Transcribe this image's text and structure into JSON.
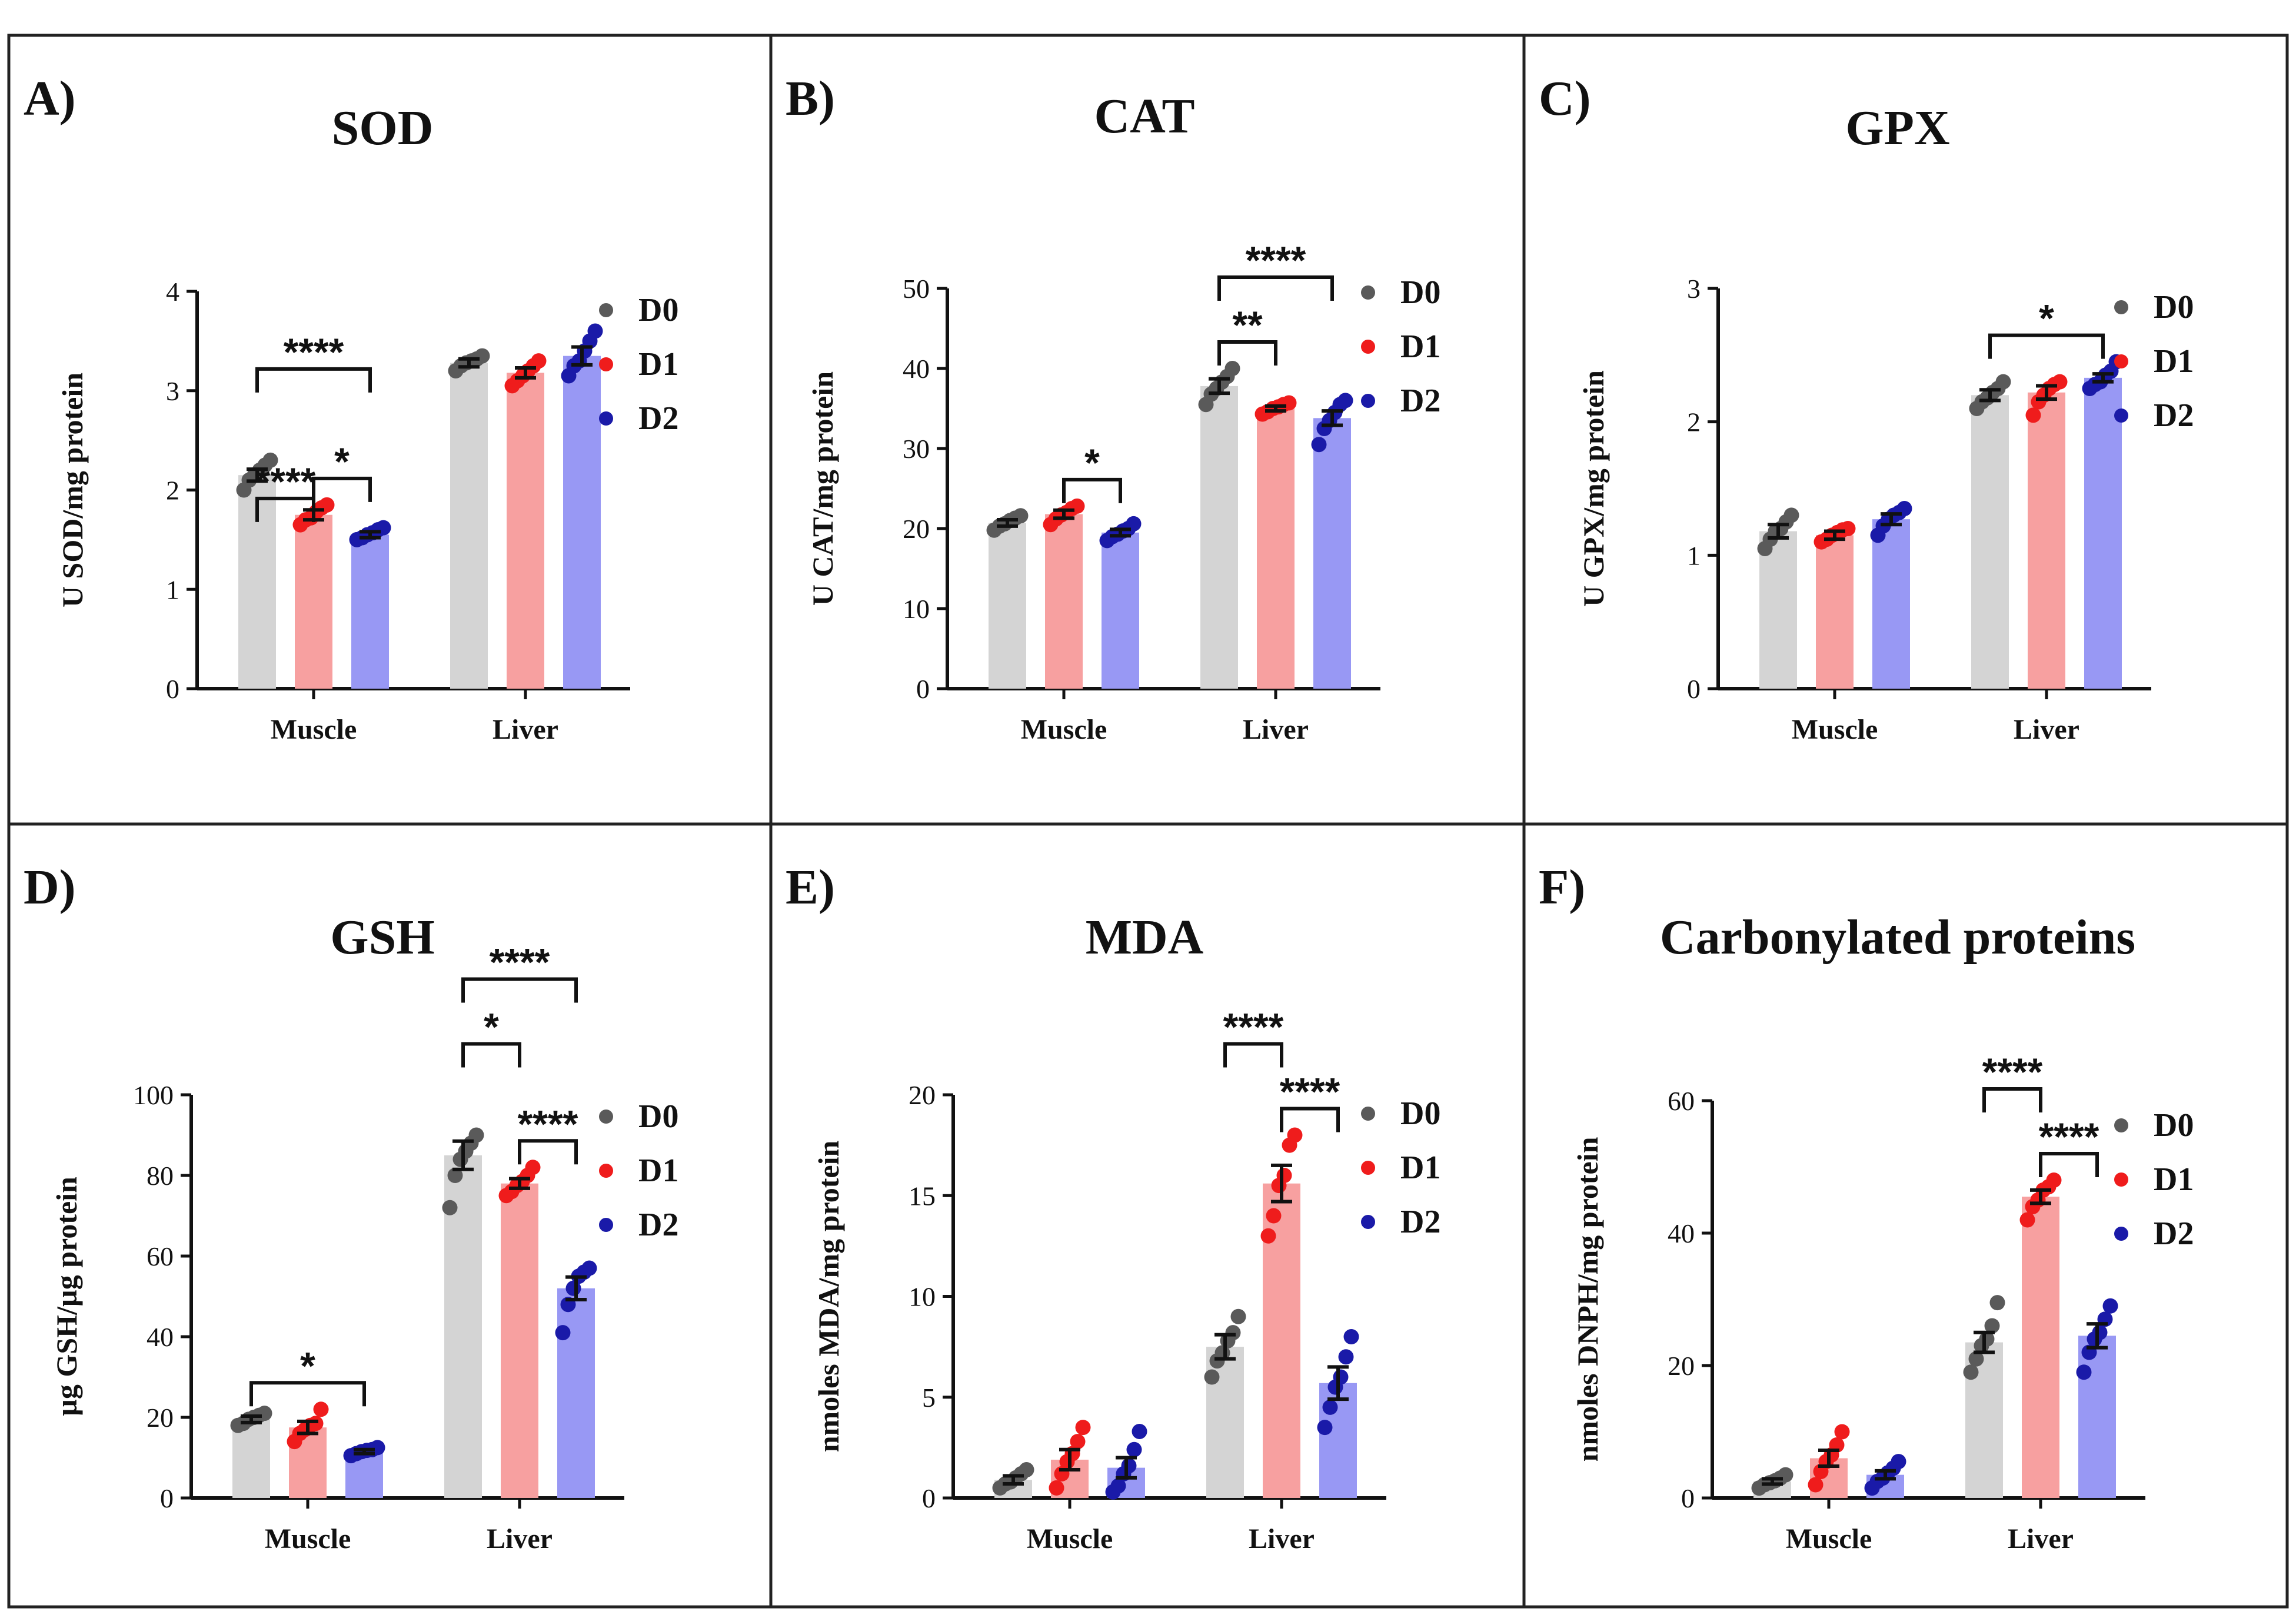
{
  "colors": {
    "D0_bar": "#d4d4d4",
    "D0_point": "#5a5a5a",
    "D1_bar": "#f7a0a0",
    "D1_point": "#ef1c1c",
    "D2_bar": "#9898f4",
    "D2_point": "#1a1aa8"
  },
  "chart_data": [
    {
      "panel_label": "A)",
      "title": "SOD",
      "type": "bar",
      "ylabel": "U SOD/mg protein",
      "ylim": [
        0,
        4
      ],
      "yticks": [
        0,
        1,
        2,
        3,
        4
      ],
      "categories": [
        "Muscle",
        "Liver"
      ],
      "series": [
        {
          "name": "D0",
          "values": [
            2.15,
            3.28
          ],
          "sem": [
            0.06,
            0.04
          ],
          "points": [
            [
              2.0,
              2.1,
              2.15,
              2.2,
              2.25,
              2.3
            ],
            [
              3.2,
              3.25,
              3.28,
              3.3,
              3.32,
              3.35
            ]
          ]
        },
        {
          "name": "D1",
          "values": [
            1.75,
            3.18
          ],
          "sem": [
            0.05,
            0.05
          ],
          "points": [
            [
              1.65,
              1.7,
              1.72,
              1.78,
              1.82,
              1.85
            ],
            [
              3.05,
              3.1,
              3.15,
              3.2,
              3.25,
              3.3
            ]
          ]
        },
        {
          "name": "D2",
          "values": [
            1.55,
            3.35
          ],
          "sem": [
            0.03,
            0.09
          ],
          "points": [
            [
              1.5,
              1.52,
              1.55,
              1.57,
              1.6,
              1.62
            ],
            [
              3.15,
              3.25,
              3.3,
              3.4,
              3.5,
              3.6
            ]
          ]
        }
      ],
      "significance": [
        {
          "group": 0,
          "from": 0,
          "to": 2,
          "level": 1,
          "label": "****"
        },
        {
          "group": 0,
          "from": 1,
          "to": 2,
          "level": 0,
          "label": "*"
        },
        {
          "group": 0,
          "from": 0,
          "to": 1,
          "level": -1,
          "label": "****"
        }
      ]
    },
    {
      "panel_label": "B)",
      "title": "CAT",
      "type": "bar",
      "ylabel": "U CAT/mg protein",
      "ylim": [
        0,
        50
      ],
      "yticks": [
        0,
        10,
        20,
        30,
        40,
        50
      ],
      "categories": [
        "Muscle",
        "Liver"
      ],
      "series": [
        {
          "name": "D0",
          "values": [
            20.7,
            37.8
          ],
          "sem": [
            0.4,
            0.9
          ],
          "points": [
            [
              19.8,
              20.3,
              20.6,
              21.0,
              21.3,
              21.6
            ],
            [
              35.5,
              36.8,
              37.5,
              38.3,
              39.0,
              40.0
            ]
          ]
        },
        {
          "name": "D1",
          "values": [
            21.8,
            35.0
          ],
          "sem": [
            0.5,
            0.3
          ],
          "points": [
            [
              20.5,
              21.2,
              21.7,
              22.0,
              22.5,
              22.8
            ],
            [
              34.3,
              34.6,
              35.0,
              35.2,
              35.5,
              35.7
            ]
          ]
        },
        {
          "name": "D2",
          "values": [
            19.5,
            33.8
          ],
          "sem": [
            0.4,
            0.9
          ],
          "points": [
            [
              18.5,
              19.0,
              19.3,
              19.7,
              20.0,
              20.6
            ],
            [
              30.5,
              32.5,
              33.5,
              34.5,
              35.5,
              36.0
            ]
          ]
        }
      ],
      "significance": [
        {
          "group": 1,
          "from": 0,
          "to": 2,
          "level": 1,
          "label": "****"
        },
        {
          "group": 1,
          "from": 0,
          "to": 1,
          "level": 0,
          "label": "**"
        },
        {
          "group": 0,
          "from": 1,
          "to": 2,
          "level": 0,
          "label": "*"
        }
      ]
    },
    {
      "panel_label": "C)",
      "title": "GPX",
      "type": "bar",
      "ylabel": "U GPX/mg protein",
      "ylim": [
        0,
        3
      ],
      "yticks": [
        0,
        1,
        2,
        3
      ],
      "categories": [
        "Muscle",
        "Liver"
      ],
      "series": [
        {
          "name": "D0",
          "values": [
            1.18,
            2.2
          ],
          "sem": [
            0.05,
            0.04
          ],
          "points": [
            [
              1.05,
              1.12,
              1.18,
              1.2,
              1.25,
              1.3
            ],
            [
              2.1,
              2.15,
              2.18,
              2.22,
              2.25,
              2.3
            ]
          ]
        },
        {
          "name": "D1",
          "values": [
            1.15,
            2.22
          ],
          "sem": [
            0.03,
            0.05
          ],
          "points": [
            [
              1.1,
              1.12,
              1.15,
              1.17,
              1.19,
              1.2
            ],
            [
              2.05,
              2.15,
              2.2,
              2.25,
              2.28,
              2.3
            ]
          ]
        },
        {
          "name": "D2",
          "values": [
            1.27,
            2.33
          ],
          "sem": [
            0.04,
            0.03
          ],
          "points": [
            [
              1.15,
              1.22,
              1.27,
              1.3,
              1.32,
              1.35
            ],
            [
              2.25,
              2.28,
              2.3,
              2.35,
              2.38,
              2.45
            ]
          ]
        }
      ],
      "significance": [
        {
          "group": 1,
          "from": 0,
          "to": 2,
          "level": 0,
          "label": "*"
        }
      ]
    },
    {
      "panel_label": "D)",
      "title": "GSH",
      "type": "bar",
      "ylabel": "µg GSH/µg protein",
      "ylim": [
        0,
        100
      ],
      "yticks": [
        0,
        20,
        40,
        60,
        80,
        100
      ],
      "categories": [
        "Muscle",
        "Liver"
      ],
      "series": [
        {
          "name": "D0",
          "values": [
            19.5,
            85.0
          ],
          "sem": [
            0.8,
            3.5
          ],
          "points": [
            [
              18.0,
              18.5,
              19.5,
              20.0,
              20.5,
              21.0
            ],
            [
              72.0,
              80.0,
              84.0,
              86.0,
              88.0,
              90.0
            ]
          ]
        },
        {
          "name": "D1",
          "values": [
            17.5,
            78.0
          ],
          "sem": [
            1.5,
            1.2
          ],
          "points": [
            [
              14.0,
              16.0,
              17.0,
              18.0,
              18.5,
              22.0
            ],
            [
              75.0,
              76.0,
              77.5,
              78.5,
              80.0,
              82.0
            ]
          ]
        },
        {
          "name": "D2",
          "values": [
            11.5,
            52.0
          ],
          "sem": [
            0.5,
            2.8
          ],
          "points": [
            [
              10.5,
              11.0,
              11.5,
              11.8,
              12.0,
              12.5
            ],
            [
              41.0,
              48.0,
              52.0,
              55.0,
              56.0,
              57.0
            ]
          ]
        }
      ],
      "significance": [
        {
          "group": 1,
          "from": 0,
          "to": 2,
          "level": 2,
          "label": "****"
        },
        {
          "group": 1,
          "from": 0,
          "to": 1,
          "level": 1,
          "label": "*"
        },
        {
          "group": 1,
          "from": 1,
          "to": 2,
          "level": 0,
          "label": "****"
        },
        {
          "group": 0,
          "from": 0,
          "to": 2,
          "level": 0,
          "label": "*"
        }
      ]
    },
    {
      "panel_label": "E)",
      "title": "MDA",
      "type": "bar",
      "ylabel": "nmoles MDA/mg protein",
      "ylim": [
        0,
        20
      ],
      "yticks": [
        0,
        5,
        10,
        15,
        20
      ],
      "categories": [
        "Muscle",
        "Liver"
      ],
      "series": [
        {
          "name": "D0",
          "values": [
            0.9,
            7.5
          ],
          "sem": [
            0.2,
            0.6
          ],
          "points": [
            [
              0.5,
              0.7,
              0.8,
              1.0,
              1.2,
              1.4
            ],
            [
              6.0,
              6.8,
              7.2,
              7.8,
              8.2,
              9.0
            ]
          ]
        },
        {
          "name": "D1",
          "values": [
            1.9,
            15.6
          ],
          "sem": [
            0.5,
            0.9
          ],
          "points": [
            [
              0.5,
              1.2,
              1.8,
              2.2,
              2.8,
              3.5
            ],
            [
              13.0,
              14.0,
              15.5,
              16.0,
              17.5,
              18.0
            ]
          ]
        },
        {
          "name": "D2",
          "values": [
            1.5,
            5.7
          ],
          "sem": [
            0.5,
            0.8
          ],
          "points": [
            [
              0.3,
              0.6,
              1.2,
              1.6,
              2.4,
              3.3
            ],
            [
              3.5,
              4.5,
              5.5,
              6.0,
              7.0,
              8.0
            ]
          ]
        }
      ],
      "significance": [
        {
          "group": 1,
          "from": 0,
          "to": 1,
          "level": 1,
          "label": "****"
        },
        {
          "group": 1,
          "from": 1,
          "to": 2,
          "level": 0,
          "label": "****"
        }
      ]
    },
    {
      "panel_label": "F)",
      "title": "Carbonylated proteins",
      "type": "bar",
      "ylabel": "nmoles DNPH/mg protein",
      "ylim": [
        0,
        60
      ],
      "yticks": [
        0,
        20,
        40,
        60
      ],
      "categories": [
        "Muscle",
        "Liver"
      ],
      "series": [
        {
          "name": "D0",
          "values": [
            2.5,
            23.5
          ],
          "sem": [
            0.4,
            1.5
          ],
          "points": [
            [
              1.5,
              2.0,
              2.3,
              2.6,
              3.0,
              3.5
            ],
            [
              19.0,
              21.0,
              23.0,
              24.0,
              26.0,
              29.5
            ]
          ]
        },
        {
          "name": "D1",
          "values": [
            6.0,
            45.5
          ],
          "sem": [
            1.2,
            1.0
          ],
          "points": [
            [
              2.0,
              4.0,
              5.5,
              6.5,
              8.0,
              10.0
            ],
            [
              42.0,
              44.0,
              45.0,
              46.5,
              47.0,
              48.0
            ]
          ]
        },
        {
          "name": "D2",
          "values": [
            3.5,
            24.5
          ],
          "sem": [
            0.6,
            1.8
          ],
          "points": [
            [
              1.5,
              2.5,
              3.0,
              3.8,
              4.5,
              5.5
            ],
            [
              19.0,
              22.0,
              24.0,
              25.0,
              27.0,
              29.0
            ]
          ]
        }
      ],
      "significance": [
        {
          "group": 1,
          "from": 0,
          "to": 1,
          "level": 1,
          "label": "****"
        },
        {
          "group": 1,
          "from": 1,
          "to": 2,
          "level": 0,
          "label": "****"
        }
      ]
    }
  ]
}
